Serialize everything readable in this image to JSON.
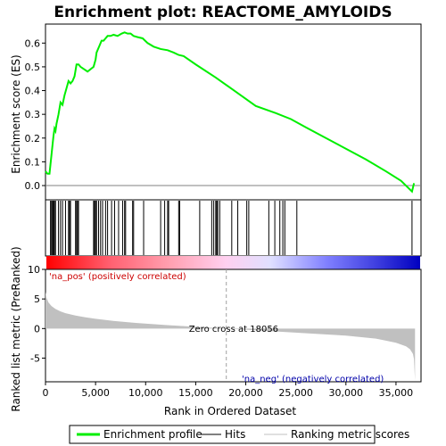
{
  "chart_data": {
    "type": "line",
    "title": "Enrichment plot: REACTOME_AMYLOIDS",
    "top_panel": {
      "ylabel": "Enrichment score (ES)",
      "ylim": [
        -0.06,
        0.68
      ],
      "yticks": [
        0.0,
        0.1,
        0.2,
        0.3,
        0.4,
        0.5,
        0.6
      ],
      "ytick_labels": [
        "0.0",
        "0.1",
        "0.2",
        "0.3",
        "0.4",
        "0.5",
        "0.6"
      ],
      "series": [
        {
          "name": "Enrichment profile",
          "color": "#00ee00",
          "x": [
            0,
            200,
            400,
            500,
            600,
            700,
            800,
            900,
            1000,
            1100,
            1300,
            1500,
            1700,
            1900,
            2100,
            2300,
            2500,
            2700,
            2900,
            3100,
            3300,
            3500,
            4200,
            4800,
            5000,
            5100,
            5200,
            5400,
            5600,
            5800,
            6000,
            6200,
            6500,
            6800,
            7200,
            7600,
            7900,
            8200,
            8500,
            8800,
            9200,
            9700,
            10200,
            10800,
            11500,
            12200,
            12800,
            13300,
            13800,
            15000,
            17000,
            19000,
            21000,
            23000,
            24500,
            26000,
            28000,
            30000,
            32000,
            34000,
            35500,
            36600,
            36800
          ],
          "y": [
            0.06,
            0.05,
            0.05,
            0.09,
            0.13,
            0.17,
            0.21,
            0.24,
            0.23,
            0.26,
            0.3,
            0.35,
            0.34,
            0.38,
            0.41,
            0.44,
            0.43,
            0.44,
            0.46,
            0.51,
            0.51,
            0.5,
            0.48,
            0.5,
            0.53,
            0.56,
            0.57,
            0.59,
            0.61,
            0.61,
            0.62,
            0.63,
            0.63,
            0.635,
            0.63,
            0.64,
            0.645,
            0.64,
            0.64,
            0.63,
            0.625,
            0.62,
            0.6,
            0.585,
            0.575,
            0.57,
            0.56,
            0.55,
            0.545,
            0.51,
            0.455,
            0.395,
            0.335,
            0.305,
            0.28,
            0.245,
            0.2,
            0.155,
            0.11,
            0.06,
            0.02,
            -0.025,
            0.01
          ]
        }
      ]
    },
    "hits": [
      500,
      600,
      700,
      750,
      800,
      900,
      1000,
      1300,
      1500,
      1700,
      2000,
      2300,
      2400,
      2500,
      3000,
      3100,
      3200,
      3300,
      4800,
      4900,
      5000,
      5100,
      5300,
      5500,
      5700,
      6000,
      6200,
      6600,
      6900,
      7300,
      7700,
      7900,
      8000,
      8700,
      8800,
      9800,
      11500,
      11900,
      12200,
      12300,
      13300,
      13400,
      15400,
      16600,
      16800,
      17000,
      17100,
      17200,
      17400,
      18600,
      19200,
      20100,
      20300,
      22300,
      22900,
      23400,
      23700,
      23900,
      25100,
      36600
    ],
    "color_bar": {
      "stops": [
        "#ff0000",
        "#ff6070",
        "#ffa0b0",
        "#ffd0f0",
        "#e0e0ff",
        "#8080ff",
        "#4040e0",
        "#0000c0"
      ]
    },
    "bottom_panel": {
      "ylabel": "Ranked list metric (PreRanked)",
      "xlabel": "Rank in Ordered Dataset",
      "ylim": [
        -9,
        10
      ],
      "yticks": [
        -5,
        0,
        5,
        10
      ],
      "ytick_labels": [
        "-5",
        "0",
        "5",
        "10"
      ],
      "metric_x": [
        0,
        100,
        300,
        600,
        1000,
        1500,
        2000,
        3000,
        4000,
        5000,
        7000,
        9000,
        12000,
        15000,
        18056,
        21000,
        24000,
        27000,
        30000,
        33000,
        35000,
        36000,
        36400,
        36700,
        36800,
        36900
      ],
      "metric_y": [
        6.2,
        5.2,
        4.4,
        3.8,
        3.3,
        2.9,
        2.6,
        2.2,
        1.9,
        1.65,
        1.25,
        0.95,
        0.6,
        0.3,
        0.0,
        -0.3,
        -0.6,
        -0.9,
        -1.2,
        -1.7,
        -2.4,
        -3.0,
        -3.5,
        -4.3,
        -5.2,
        -8.8
      ],
      "zero_cross_label": "Zero cross at 18056",
      "zero_cross_x": 18056,
      "pos_label": "'na_pos' (positively correlated)",
      "neg_label": "'na_neg' (negatively correlated)"
    },
    "xaxis": {
      "xlim": [
        0,
        37500
      ],
      "xticks": [
        0,
        5000,
        10000,
        15000,
        20000,
        25000,
        30000,
        35000
      ],
      "xtick_labels": [
        "0",
        "5,000",
        "10,000",
        "15,000",
        "20,000",
        "25,000",
        "30,000",
        "35,000"
      ]
    },
    "legend": [
      {
        "label": "Enrichment profile",
        "color": "#00ee00"
      },
      {
        "label": "Hits",
        "color": "#000000"
      },
      {
        "label": "Ranking metric scores",
        "color": "#c0c0c0"
      }
    ]
  }
}
